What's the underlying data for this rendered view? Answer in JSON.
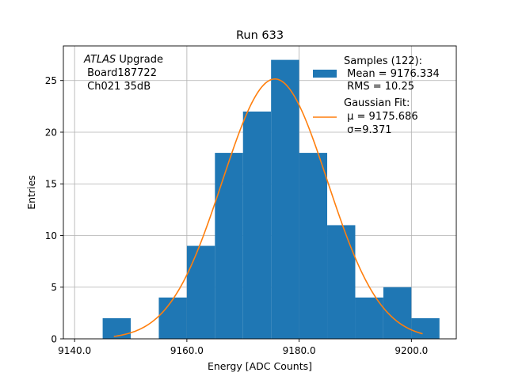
{
  "chart_data": {
    "type": "bar",
    "title": "Run 633",
    "xlabel": "Energy [ADC Counts]",
    "ylabel": "Entries",
    "xlim": [
      9138.0,
      9208.0
    ],
    "ylim": [
      0,
      28.35
    ],
    "grid": true,
    "legend_position": "top-right",
    "x_ticks": [
      9140.0,
      9160.0,
      9180.0,
      9200.0
    ],
    "x_tick_labels": [
      "9140.0",
      "9160.0",
      "9180.0",
      "9200.0"
    ],
    "y_ticks": [
      0,
      5,
      10,
      15,
      20,
      25
    ],
    "y_tick_labels": [
      "0",
      "5",
      "10",
      "15",
      "20",
      "25"
    ],
    "annotation": {
      "line1_italic": "ATLAS",
      "line1_rest": " Upgrade",
      "line2": " Board187722",
      "line3": " Ch021 35dB"
    },
    "histogram": {
      "name": "Samples (122):",
      "stats": [
        " Mean = 9176.334",
        " RMS = 10.25"
      ],
      "color": "#1f77b4",
      "bin_edges": [
        9145,
        9150,
        9155,
        9160,
        9165,
        9170,
        9175,
        9180,
        9185,
        9190,
        9195,
        9200,
        9205
      ],
      "counts": [
        2,
        0,
        4,
        9,
        18,
        22,
        27,
        18,
        11,
        4,
        5,
        2
      ]
    },
    "fit": {
      "name": "Gaussian Fit:",
      "stats": [
        " μ = 9175.686",
        " σ=9.371"
      ],
      "color": "#ff7f0e",
      "mu": 9175.686,
      "sigma": 9.371,
      "amplitude": 25.15,
      "x_range": [
        9147.0,
        9202.0
      ]
    }
  }
}
